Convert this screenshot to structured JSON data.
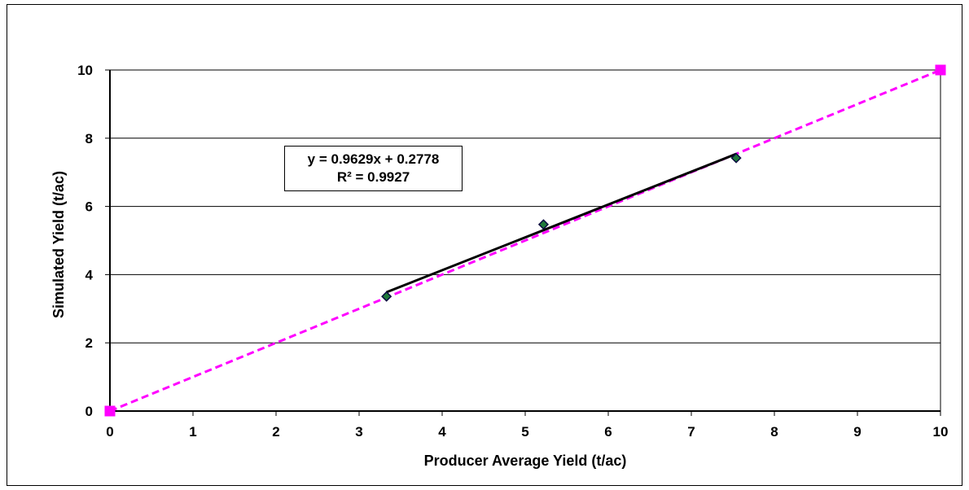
{
  "chart_data": {
    "type": "scatter",
    "xlabel": "Producer Average Yield (t/ac)",
    "ylabel": "Simulated Yield (t/ac)",
    "xlim": [
      0,
      10
    ],
    "ylim": [
      0,
      10
    ],
    "x_ticks": [
      "0",
      "1",
      "2",
      "3",
      "4",
      "5",
      "6",
      "7",
      "8",
      "9",
      "10"
    ],
    "y_ticks": [
      "0",
      "2",
      "4",
      "6",
      "8",
      "10"
    ],
    "grid": "horizontal",
    "series": [
      {
        "marker": "diamond",
        "color": "#1f7a3a",
        "points": [
          {
            "x": 3.33,
            "y": 3.36
          },
          {
            "x": 5.22,
            "y": 5.47
          },
          {
            "x": 7.54,
            "y": 7.42
          }
        ]
      },
      {
        "marker": "square",
        "color": "#ff00ff",
        "line_style": "dashed",
        "points": [
          {
            "x": 0,
            "y": 0
          },
          {
            "x": 10,
            "y": 10
          }
        ]
      }
    ],
    "trendline": {
      "slope": 0.9629,
      "intercept": 0.2778,
      "x_range": [
        3.33,
        7.54
      ],
      "color": "#000000",
      "equation_label": "y = 0.9629x + 0.2778",
      "r2_label": "R² = 0.9927"
    }
  }
}
